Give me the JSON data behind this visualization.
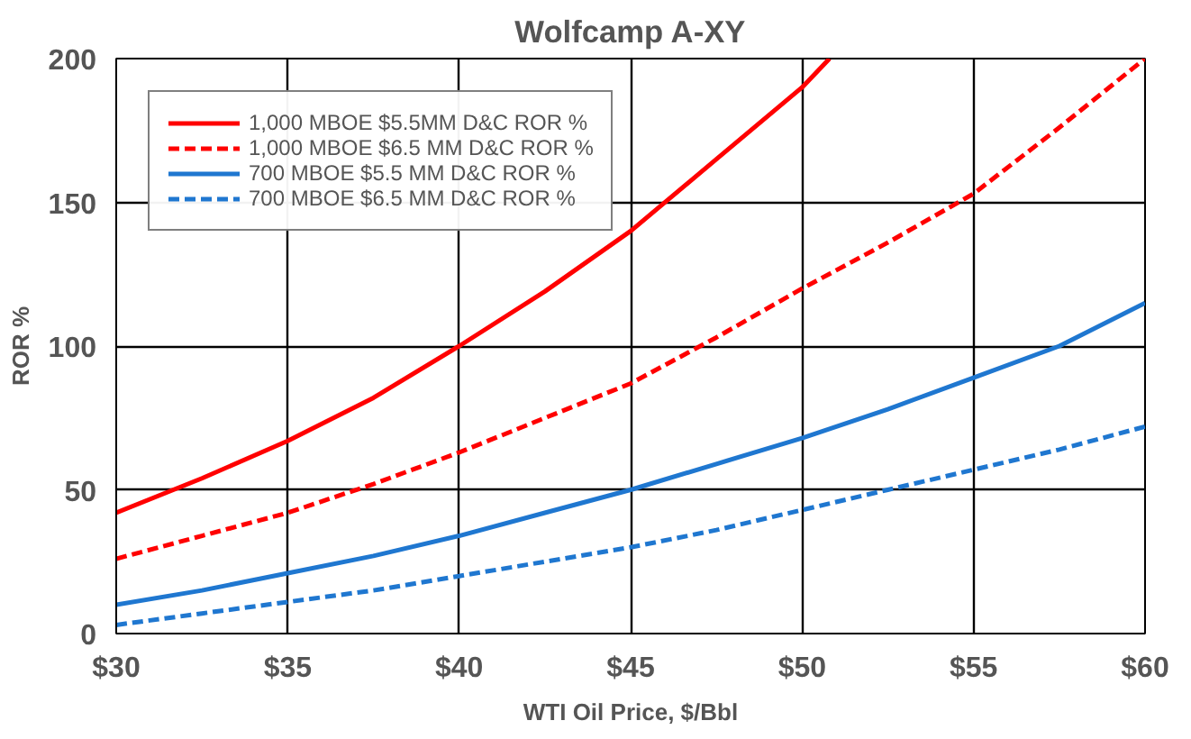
{
  "chart_data": {
    "type": "line",
    "title": "Wolfcamp A-XY",
    "xlabel": "WTI Oil Price, $/Bbl",
    "ylabel": "ROR %",
    "xlim": [
      30,
      60
    ],
    "ylim": [
      0,
      200
    ],
    "xticks": [
      {
        "value": 30,
        "label": "$30"
      },
      {
        "value": 35,
        "label": "$35"
      },
      {
        "value": 40,
        "label": "$40"
      },
      {
        "value": 45,
        "label": "$45"
      },
      {
        "value": 50,
        "label": "$50"
      },
      {
        "value": 55,
        "label": "$55"
      },
      {
        "value": 60,
        "label": "$60"
      }
    ],
    "yticks": [
      0,
      50,
      100,
      150,
      200
    ],
    "grid": true,
    "legend": "top left",
    "marker": "none",
    "series": [
      {
        "name": "1,000 MBOE $5.5MM D&C ROR %",
        "color": "#ff0000",
        "line_style": "solid",
        "x": [
          30,
          32.5,
          35,
          37.5,
          40,
          42.5,
          45,
          47.5,
          50,
          50.8
        ],
        "values": [
          42,
          54,
          67,
          82,
          100,
          119,
          140,
          165,
          190,
          200
        ]
      },
      {
        "name": "1,000 MBOE $6.5 MM D&C ROR %",
        "color": "#ff0000",
        "line_style": "dashed",
        "x": [
          30,
          32.5,
          35,
          37.5,
          40,
          42.5,
          45,
          47.5,
          50,
          52.5,
          55,
          57.5,
          60
        ],
        "values": [
          26,
          34,
          42,
          52,
          63,
          75,
          87,
          103,
          120,
          136,
          153,
          176,
          200
        ]
      },
      {
        "name": "700 MBOE $5.5 MM D&C ROR %",
        "color": "#1f77d0",
        "line_style": "solid",
        "x": [
          30,
          32.5,
          35,
          37.5,
          40,
          42.5,
          45,
          47.5,
          50,
          52.5,
          55,
          57.5,
          60
        ],
        "values": [
          10,
          15,
          21,
          27,
          34,
          42,
          50,
          59,
          68,
          78,
          89,
          100,
          115
        ]
      },
      {
        "name": "700 MBOE $6.5 MM D&C ROR %",
        "color": "#1f77d0",
        "line_style": "dashed",
        "x": [
          30,
          32.5,
          35,
          37.5,
          40,
          42.5,
          45,
          47.5,
          50,
          52.5,
          55,
          57.5,
          60
        ],
        "values": [
          3,
          7,
          11,
          15,
          20,
          25,
          30,
          36,
          43,
          50,
          57,
          64,
          72
        ]
      }
    ]
  }
}
